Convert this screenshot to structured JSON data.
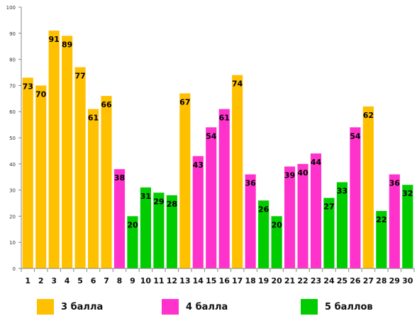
{
  "chart_data": {
    "type": "bar",
    "title": "",
    "xlabel": "",
    "ylabel": "",
    "ylim": [
      0,
      100
    ],
    "yticks": [
      0,
      10,
      20,
      30,
      40,
      50,
      60,
      70,
      80,
      90,
      100
    ],
    "grid": false,
    "legend_position": "bottom",
    "categories": [
      "1",
      "2",
      "3",
      "4",
      "5",
      "6",
      "7",
      "8",
      "9",
      "10",
      "11",
      "12",
      "13",
      "14",
      "15",
      "16",
      "17",
      "18",
      "19",
      "20",
      "21",
      "22",
      "23",
      "24",
      "25",
      "26",
      "27",
      "28",
      "29",
      "30"
    ],
    "values": [
      73,
      70,
      91,
      89,
      77,
      61,
      66,
      38,
      20,
      31,
      29,
      28,
      67,
      43,
      54,
      61,
      74,
      36,
      26,
      20,
      39,
      40,
      44,
      27,
      33,
      54,
      62,
      22,
      36,
      32
    ],
    "groups": [
      "3",
      "3",
      "3",
      "3",
      "3",
      "3",
      "3",
      "4",
      "5",
      "5",
      "5",
      "5",
      "3",
      "4",
      "4",
      "4",
      "3",
      "4",
      "5",
      "5",
      "4",
      "4",
      "4",
      "5",
      "5",
      "4",
      "3",
      "5",
      "4",
      "5"
    ],
    "legend": [
      {
        "key": "3",
        "label": "3 балла",
        "color": "#FFC000"
      },
      {
        "key": "4",
        "label": "4 балла",
        "color": "#FF33CC"
      },
      {
        "key": "5",
        "label": "5 баллов",
        "color": "#00CC00"
      }
    ]
  }
}
